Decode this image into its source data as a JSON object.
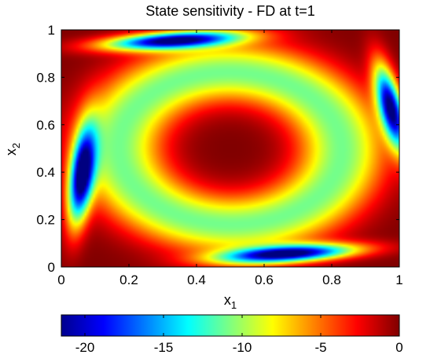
{
  "chart_data": {
    "type": "heatmap",
    "title": "State sensitivity - FD at t=1",
    "xlabel": {
      "base": "x",
      "subscript": "1"
    },
    "ylabel": {
      "base": "x",
      "subscript": "2"
    },
    "xlim": [
      0,
      1
    ],
    "ylim": [
      0,
      1
    ],
    "x_ticks": [
      0,
      0.2,
      0.4,
      0.6,
      0.8,
      1
    ],
    "y_ticks": [
      0,
      0.2,
      0.4,
      0.6,
      0.8,
      1
    ],
    "x_tick_labels": [
      "0",
      "0.2",
      "0.4",
      "0.6",
      "0.8",
      "1"
    ],
    "y_tick_labels": [
      "0",
      "0.2",
      "0.4",
      "0.6",
      "0.8",
      "1"
    ],
    "colormap": "jet",
    "clim": [
      -21.5,
      0
    ],
    "colorbar": {
      "orientation": "horizontal",
      "placement": "bottom",
      "ticks": [
        -20,
        -15,
        -10,
        -5,
        0
      ],
      "tick_labels": [
        "-20",
        "-15",
        "-10",
        "-5",
        "0"
      ]
    },
    "grid": false,
    "approx_field": {
      "note": "Approximate values read from the color mapping; the figure shows a continuous field",
      "baseline": 0,
      "features": [
        {
          "kind": "ring",
          "center": [
            0.5,
            0.5
          ],
          "radius": [
            0.33,
            0.32
          ],
          "rotation_deg": -14,
          "width": 0.09,
          "amplitude": -11
        },
        {
          "kind": "trough",
          "center": [
            0.06,
            0.38
          ],
          "radius": [
            0.035,
            0.2
          ],
          "rotation_deg": -5,
          "amplitude": -21
        },
        {
          "kind": "trough",
          "center": [
            0.975,
            0.67
          ],
          "radius": [
            0.035,
            0.18
          ],
          "rotation_deg": 10,
          "amplitude": -21
        },
        {
          "kind": "trough",
          "center": [
            0.33,
            0.955
          ],
          "radius": [
            0.2,
            0.035
          ],
          "rotation_deg": 5,
          "amplitude": -21
        },
        {
          "kind": "trough",
          "center": [
            0.67,
            0.055
          ],
          "radius": [
            0.2,
            0.035
          ],
          "rotation_deg": 5,
          "amplitude": -21
        }
      ]
    }
  }
}
